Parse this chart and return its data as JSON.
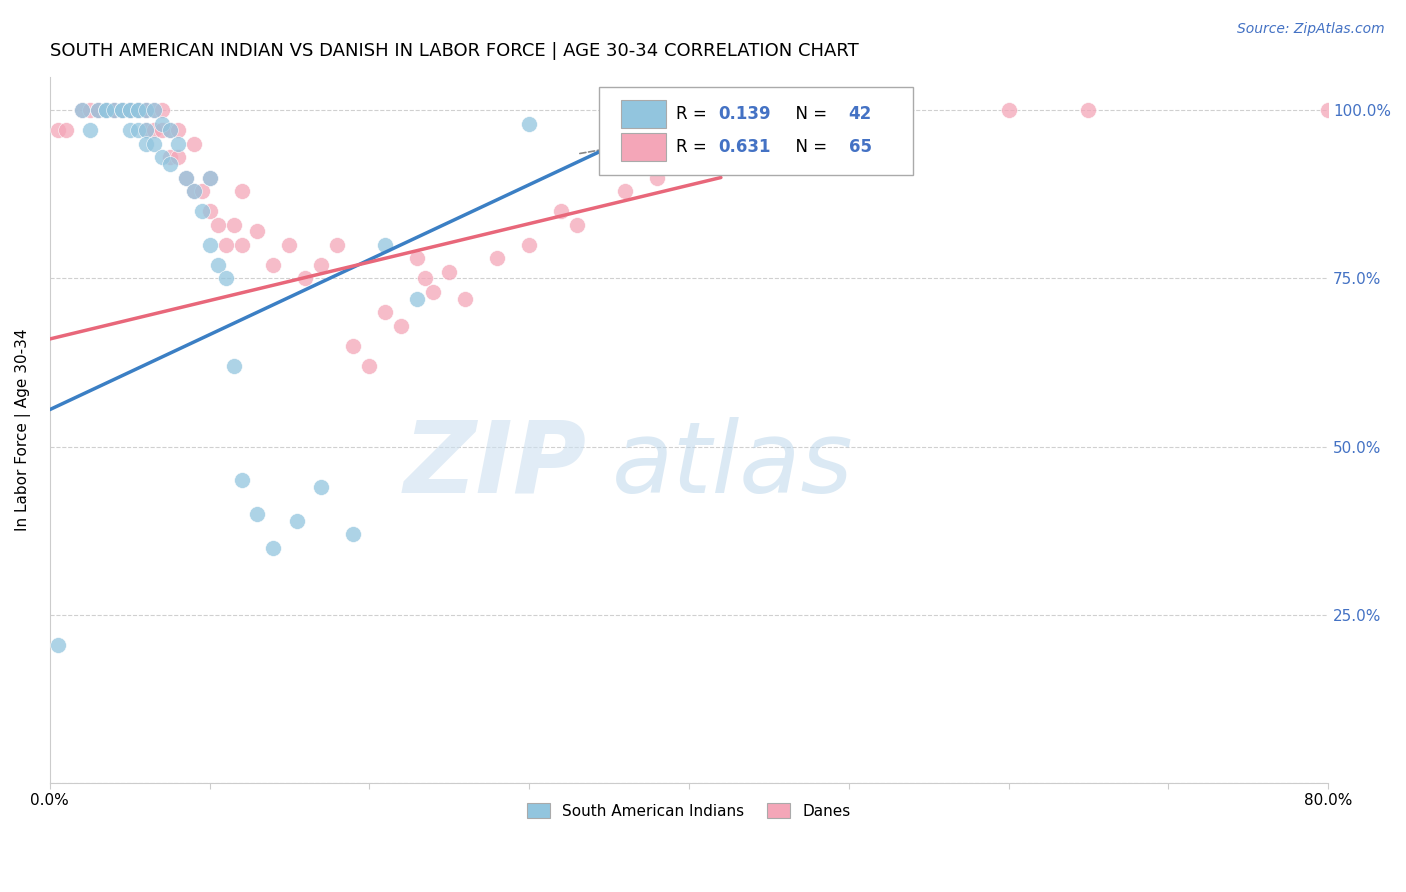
{
  "title": "SOUTH AMERICAN INDIAN VS DANISH IN LABOR FORCE | AGE 30-34 CORRELATION CHART",
  "source": "Source: ZipAtlas.com",
  "ylabel": "In Labor Force | Age 30-34",
  "xmin": 0.0,
  "xmax": 0.8,
  "ymin": 0.0,
  "ymax": 1.05,
  "x_ticks": [
    0.0,
    0.1,
    0.2,
    0.3,
    0.4,
    0.5,
    0.6,
    0.7,
    0.8
  ],
  "y_ticks": [
    0.0,
    0.25,
    0.5,
    0.75,
    1.0
  ],
  "y_tick_labels": [
    "",
    "25.0%",
    "50.0%",
    "75.0%",
    "100.0%"
  ],
  "blue_color": "#92c5de",
  "pink_color": "#f4a6b8",
  "blue_line_color": "#3b7fc4",
  "pink_line_color": "#e8677a",
  "blue_R": "0.139",
  "blue_N": "42",
  "pink_R": "0.631",
  "pink_N": "65",
  "blue_scatter_x": [
    0.005,
    0.02,
    0.025,
    0.03,
    0.035,
    0.035,
    0.04,
    0.045,
    0.045,
    0.05,
    0.05,
    0.05,
    0.055,
    0.055,
    0.055,
    0.06,
    0.06,
    0.06,
    0.065,
    0.065,
    0.07,
    0.07,
    0.075,
    0.075,
    0.08,
    0.085,
    0.09,
    0.095,
    0.1,
    0.1,
    0.105,
    0.11,
    0.115,
    0.12,
    0.13,
    0.14,
    0.155,
    0.17,
    0.19,
    0.21,
    0.23,
    0.3
  ],
  "blue_scatter_y": [
    0.205,
    1.0,
    0.97,
    1.0,
    1.0,
    1.0,
    1.0,
    1.0,
    1.0,
    1.0,
    1.0,
    0.97,
    1.0,
    1.0,
    0.97,
    1.0,
    0.97,
    0.95,
    1.0,
    0.95,
    0.98,
    0.93,
    0.97,
    0.92,
    0.95,
    0.9,
    0.88,
    0.85,
    0.9,
    0.8,
    0.77,
    0.75,
    0.62,
    0.45,
    0.4,
    0.35,
    0.39,
    0.44,
    0.37,
    0.8,
    0.72,
    0.98
  ],
  "pink_scatter_x": [
    0.005,
    0.01,
    0.02,
    0.025,
    0.03,
    0.03,
    0.035,
    0.04,
    0.04,
    0.045,
    0.045,
    0.05,
    0.05,
    0.05,
    0.055,
    0.055,
    0.06,
    0.06,
    0.06,
    0.065,
    0.065,
    0.07,
    0.07,
    0.075,
    0.075,
    0.08,
    0.08,
    0.085,
    0.09,
    0.09,
    0.095,
    0.1,
    0.1,
    0.105,
    0.11,
    0.115,
    0.12,
    0.12,
    0.13,
    0.14,
    0.15,
    0.16,
    0.17,
    0.18,
    0.19,
    0.2,
    0.21,
    0.22,
    0.23,
    0.235,
    0.24,
    0.25,
    0.26,
    0.28,
    0.3,
    0.32,
    0.33,
    0.36,
    0.38,
    0.4,
    0.5,
    0.6,
    0.65,
    0.8,
    0.82
  ],
  "pink_scatter_y": [
    0.97,
    0.97,
    1.0,
    1.0,
    1.0,
    1.0,
    1.0,
    1.0,
    1.0,
    1.0,
    1.0,
    1.0,
    1.0,
    1.0,
    1.0,
    1.0,
    1.0,
    1.0,
    0.97,
    1.0,
    0.97,
    1.0,
    0.97,
    0.97,
    0.93,
    0.97,
    0.93,
    0.9,
    0.95,
    0.88,
    0.88,
    0.9,
    0.85,
    0.83,
    0.8,
    0.83,
    0.88,
    0.8,
    0.82,
    0.77,
    0.8,
    0.75,
    0.77,
    0.8,
    0.65,
    0.62,
    0.7,
    0.68,
    0.78,
    0.75,
    0.73,
    0.76,
    0.72,
    0.78,
    0.8,
    0.85,
    0.83,
    0.88,
    0.9,
    0.93,
    1.0,
    1.0,
    1.0,
    1.0,
    1.0
  ]
}
